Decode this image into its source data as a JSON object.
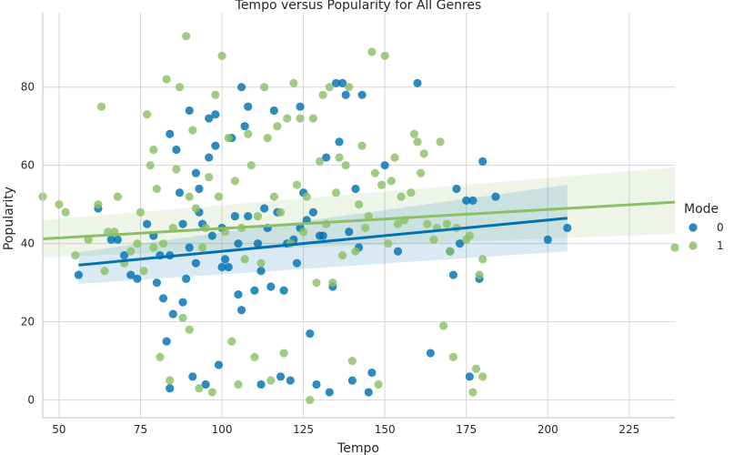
{
  "chart_data": {
    "type": "scatter",
    "title": "Tempo versus Popularity for All Genres",
    "xlabel": "Tempo",
    "ylabel": "Popularity",
    "xlim": [
      45,
      239
    ],
    "ylim": [
      -4.5,
      99
    ],
    "x_ticks": [
      50,
      75,
      100,
      125,
      150,
      175,
      200,
      225
    ],
    "y_ticks": [
      0,
      20,
      40,
      60,
      80
    ],
    "grid": true,
    "legend_position": "right",
    "legend_title": "Mode",
    "series": [
      {
        "name": "0",
        "color": "#0072B2",
        "points": [
          [
            56,
            32
          ],
          [
            62,
            49
          ],
          [
            66,
            41
          ],
          [
            68,
            41
          ],
          [
            70,
            37
          ],
          [
            72,
            32
          ],
          [
            74,
            31
          ],
          [
            77,
            45
          ],
          [
            79,
            42
          ],
          [
            80,
            30
          ],
          [
            81,
            37
          ],
          [
            82,
            26
          ],
          [
            83,
            15
          ],
          [
            84,
            37
          ],
          [
            84,
            68
          ],
          [
            84,
            3
          ],
          [
            85,
            22
          ],
          [
            86,
            64
          ],
          [
            87,
            53
          ],
          [
            88,
            45
          ],
          [
            88,
            25
          ],
          [
            89,
            31
          ],
          [
            90,
            39
          ],
          [
            90,
            74
          ],
          [
            91,
            6
          ],
          [
            92,
            35
          ],
          [
            92,
            58
          ],
          [
            93,
            54
          ],
          [
            93,
            48
          ],
          [
            94,
            45
          ],
          [
            95,
            4
          ],
          [
            96,
            62
          ],
          [
            96,
            72
          ],
          [
            97,
            42
          ],
          [
            98,
            65
          ],
          [
            98,
            73
          ],
          [
            99,
            9
          ],
          [
            100,
            34
          ],
          [
            100,
            44
          ],
          [
            101,
            36
          ],
          [
            102,
            34
          ],
          [
            103,
            67
          ],
          [
            104,
            47
          ],
          [
            105,
            27
          ],
          [
            105,
            40
          ],
          [
            106,
            80
          ],
          [
            106,
            23
          ],
          [
            107,
            70
          ],
          [
            108,
            75
          ],
          [
            108,
            47
          ],
          [
            110,
            28
          ],
          [
            111,
            40
          ],
          [
            112,
            33
          ],
          [
            112,
            4
          ],
          [
            113,
            49
          ],
          [
            114,
            44
          ],
          [
            115,
            29
          ],
          [
            116,
            74
          ],
          [
            117,
            48
          ],
          [
            118,
            6
          ],
          [
            119,
            28
          ],
          [
            120,
            40
          ],
          [
            121,
            5
          ],
          [
            122,
            41
          ],
          [
            123,
            35
          ],
          [
            124,
            44
          ],
          [
            124,
            75
          ],
          [
            125,
            53
          ],
          [
            126,
            46
          ],
          [
            127,
            17
          ],
          [
            128,
            48
          ],
          [
            129,
            4
          ],
          [
            130,
            42
          ],
          [
            131,
            42
          ],
          [
            132,
            62
          ],
          [
            133,
            2
          ],
          [
            134,
            29
          ],
          [
            135,
            81
          ],
          [
            136,
            66
          ],
          [
            137,
            81
          ],
          [
            138,
            78
          ],
          [
            139,
            43
          ],
          [
            140,
            5
          ],
          [
            141,
            54
          ],
          [
            142,
            39
          ],
          [
            143,
            78
          ],
          [
            145,
            2
          ],
          [
            146,
            7
          ],
          [
            150,
            60
          ],
          [
            154,
            38
          ],
          [
            160,
            81
          ],
          [
            164,
            12
          ],
          [
            170,
            38
          ],
          [
            171,
            32
          ],
          [
            172,
            54
          ],
          [
            173,
            40
          ],
          [
            175,
            51
          ],
          [
            176,
            6
          ],
          [
            177,
            51
          ],
          [
            179,
            31
          ],
          [
            180,
            61
          ],
          [
            184,
            52
          ],
          [
            200,
            41
          ],
          [
            206,
            44
          ]
        ],
        "trend": {
          "x": [
            56,
            206
          ],
          "y": [
            34.5,
            46.5
          ],
          "ci_lower": [
            29.7,
            38.0
          ],
          "ci_upper": [
            37.8,
            55.0
          ]
        }
      },
      {
        "name": "1",
        "color": "#8BBF66",
        "points": [
          [
            45,
            52
          ],
          [
            50,
            50
          ],
          [
            52,
            48
          ],
          [
            55,
            37
          ],
          [
            59,
            41
          ],
          [
            62,
            50
          ],
          [
            63,
            75
          ],
          [
            64,
            33
          ],
          [
            65,
            43
          ],
          [
            67,
            43
          ],
          [
            68,
            52
          ],
          [
            70,
            35
          ],
          [
            72,
            38
          ],
          [
            74,
            40
          ],
          [
            75,
            48
          ],
          [
            76,
            33
          ],
          [
            77,
            73
          ],
          [
            78,
            60
          ],
          [
            79,
            39
          ],
          [
            79,
            64
          ],
          [
            80,
            54
          ],
          [
            81,
            11
          ],
          [
            82,
            40
          ],
          [
            83,
            82
          ],
          [
            84,
            5
          ],
          [
            85,
            44
          ],
          [
            86,
            59
          ],
          [
            87,
            80
          ],
          [
            88,
            21
          ],
          [
            89,
            93
          ],
          [
            90,
            18
          ],
          [
            90,
            52
          ],
          [
            91,
            69
          ],
          [
            92,
            49
          ],
          [
            93,
            3
          ],
          [
            94,
            39
          ],
          [
            95,
            44
          ],
          [
            96,
            57
          ],
          [
            97,
            2
          ],
          [
            98,
            78
          ],
          [
            99,
            52
          ],
          [
            100,
            88
          ],
          [
            101,
            43
          ],
          [
            102,
            67
          ],
          [
            103,
            15
          ],
          [
            104,
            56
          ],
          [
            105,
            4
          ],
          [
            106,
            44
          ],
          [
            107,
            36
          ],
          [
            108,
            68
          ],
          [
            109,
            60
          ],
          [
            110,
            11
          ],
          [
            111,
            47
          ],
          [
            112,
            35
          ],
          [
            113,
            80
          ],
          [
            114,
            67
          ],
          [
            115,
            5
          ],
          [
            116,
            52
          ],
          [
            117,
            70
          ],
          [
            118,
            48
          ],
          [
            119,
            12
          ],
          [
            120,
            72
          ],
          [
            121,
            40
          ],
          [
            122,
            81
          ],
          [
            123,
            55
          ],
          [
            124,
            72
          ],
          [
            125,
            43
          ],
          [
            126,
            52
          ],
          [
            127,
            0
          ],
          [
            128,
            72
          ],
          [
            129,
            30
          ],
          [
            130,
            61
          ],
          [
            131,
            78
          ],
          [
            132,
            45
          ],
          [
            133,
            80
          ],
          [
            134,
            30
          ],
          [
            135,
            53
          ],
          [
            136,
            62
          ],
          [
            137,
            37
          ],
          [
            138,
            60
          ],
          [
            139,
            80
          ],
          [
            140,
            10
          ],
          [
            141,
            38
          ],
          [
            142,
            50
          ],
          [
            143,
            65
          ],
          [
            144,
            44
          ],
          [
            145,
            47
          ],
          [
            146,
            89
          ],
          [
            147,
            58
          ],
          [
            148,
            4
          ],
          [
            149,
            55
          ],
          [
            150,
            88
          ],
          [
            151,
            40
          ],
          [
            152,
            56
          ],
          [
            153,
            62
          ],
          [
            154,
            45
          ],
          [
            155,
            52
          ],
          [
            156,
            46
          ],
          [
            158,
            53
          ],
          [
            159,
            68
          ],
          [
            160,
            66
          ],
          [
            161,
            58
          ],
          [
            162,
            63
          ],
          [
            163,
            45
          ],
          [
            165,
            41
          ],
          [
            166,
            44
          ],
          [
            167,
            66
          ],
          [
            168,
            19
          ],
          [
            169,
            45
          ],
          [
            170,
            38
          ],
          [
            171,
            11
          ],
          [
            172,
            44
          ],
          [
            175,
            41
          ],
          [
            176,
            42
          ],
          [
            177,
            2
          ],
          [
            178,
            8
          ],
          [
            179,
            32
          ],
          [
            180,
            36
          ],
          [
            180,
            6
          ],
          [
            239,
            39
          ]
        ],
        "trend": {
          "x": [
            45,
            239
          ],
          "y": [
            41.2,
            50.6
          ],
          "ci_lower": [
            36.5,
            42.5
          ],
          "ci_upper": [
            46.0,
            59.5
          ]
        }
      }
    ]
  }
}
